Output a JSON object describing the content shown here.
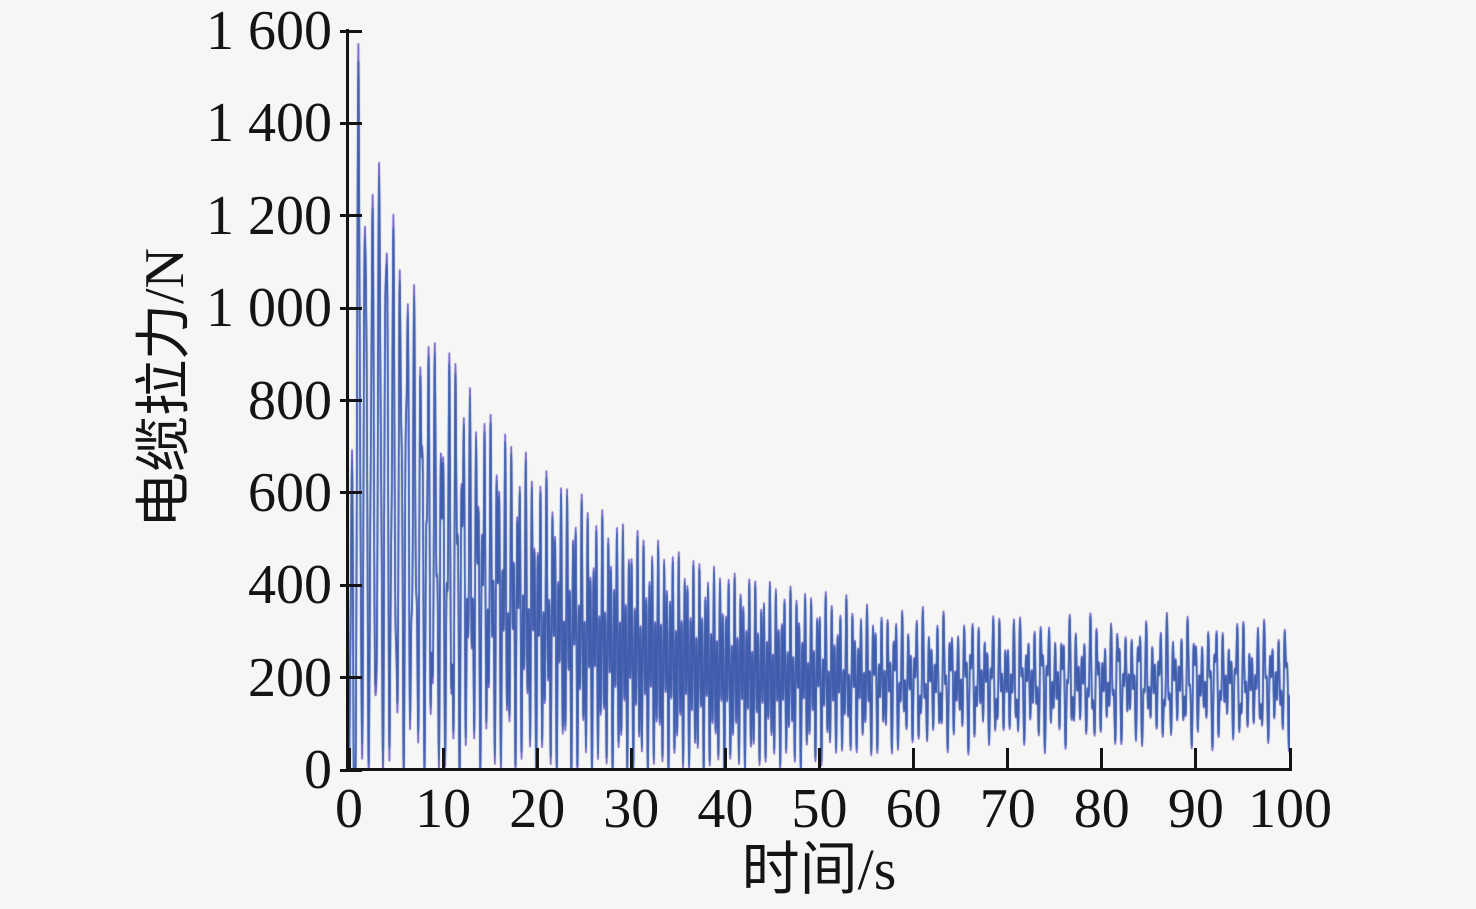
{
  "figure": {
    "background": "#f6f6f5",
    "axes_color": "#141414"
  },
  "chart_data": {
    "type": "line",
    "title": "",
    "xlabel": "时间/s",
    "ylabel": "电缆拉力/N",
    "xlim": [
      0,
      100
    ],
    "ylim": [
      0,
      1600
    ],
    "grid": false,
    "legend": null,
    "x_ticks": [
      0,
      10,
      20,
      30,
      40,
      50,
      60,
      70,
      80,
      90,
      100
    ],
    "x_tick_labels": [
      "0",
      "10",
      "20",
      "30",
      "40",
      "50",
      "60",
      "70",
      "80",
      "90",
      "100"
    ],
    "y_ticks": [
      0,
      200,
      400,
      600,
      800,
      1000,
      1200,
      1400,
      1600
    ],
    "y_tick_labels": [
      "0",
      "200",
      "400",
      "600",
      "800",
      "1 000",
      "1 200",
      "1 400",
      "1 600"
    ],
    "series": [
      {
        "name": "电缆拉力",
        "color": "#3E5DAB",
        "accent_purple": "#6052C6",
        "accent_cyan": "#C9E8F3",
        "initial_peak_N": 1540,
        "steady_state_band_N": [
          50,
          340
        ],
        "steady_state_core_N": [
          150,
          250
        ],
        "envelope_upper": {
          "t": [
            0,
            0.5,
            1,
            2,
            3,
            4,
            5,
            6,
            7,
            8,
            9,
            10,
            11,
            12,
            13,
            14,
            15,
            16,
            18,
            20,
            22,
            24,
            26,
            28,
            30,
            33,
            36,
            40,
            44,
            48,
            52,
            56,
            60,
            65,
            70,
            75,
            80,
            85,
            90,
            95,
            100
          ],
          "value": [
            300,
            1000,
            1546,
            1180,
            1320,
            1285,
            1140,
            1120,
            1020,
            950,
            930,
            820,
            930,
            860,
            800,
            790,
            760,
            740,
            690,
            650,
            620,
            600,
            565,
            535,
            520,
            485,
            455,
            430,
            405,
            400,
            375,
            360,
            350,
            345,
            340,
            340,
            335,
            335,
            335,
            330,
            330
          ]
        },
        "envelope_lower": {
          "t": [
            0,
            35,
            40,
            45,
            50,
            55,
            60,
            65,
            70,
            80,
            90,
            100
          ],
          "value": [
            0,
            0,
            0,
            0,
            10,
            25,
            40,
            50,
            55,
            60,
            60,
            55
          ]
        },
        "mean_level": {
          "t": [
            0,
            0.5,
            1,
            2,
            3,
            4,
            5,
            6,
            8,
            10,
            12,
            14,
            16,
            20,
            25,
            30,
            40,
            50,
            60,
            80,
            100
          ],
          "value": [
            30,
            300,
            773,
            590,
            660,
            640,
            570,
            560,
            475,
            420,
            428,
            395,
            370,
            325,
            285,
            255,
            212,
            197,
            192,
            190,
            188
          ]
        },
        "node_fraction": {
          "t": [
            0,
            35,
            45,
            55,
            65,
            75,
            100
          ],
          "value": [
            1.0,
            1.0,
            0.82,
            0.6,
            0.38,
            0.3,
            0.28
          ]
        },
        "fast_amplitude": {
          "t": [
            0,
            5,
            15,
            30,
            45,
            60,
            80,
            100
          ],
          "value": [
            60,
            120,
            170,
            160,
            120,
            60,
            48,
            45
          ]
        },
        "oscillation": {
          "primary_freq_hz": 1.35,
          "fast_freq_hz": 3.2,
          "beat_period_s": 2.6,
          "beat_sharpness": 1.3,
          "clip_min": 0
        }
      }
    ]
  }
}
